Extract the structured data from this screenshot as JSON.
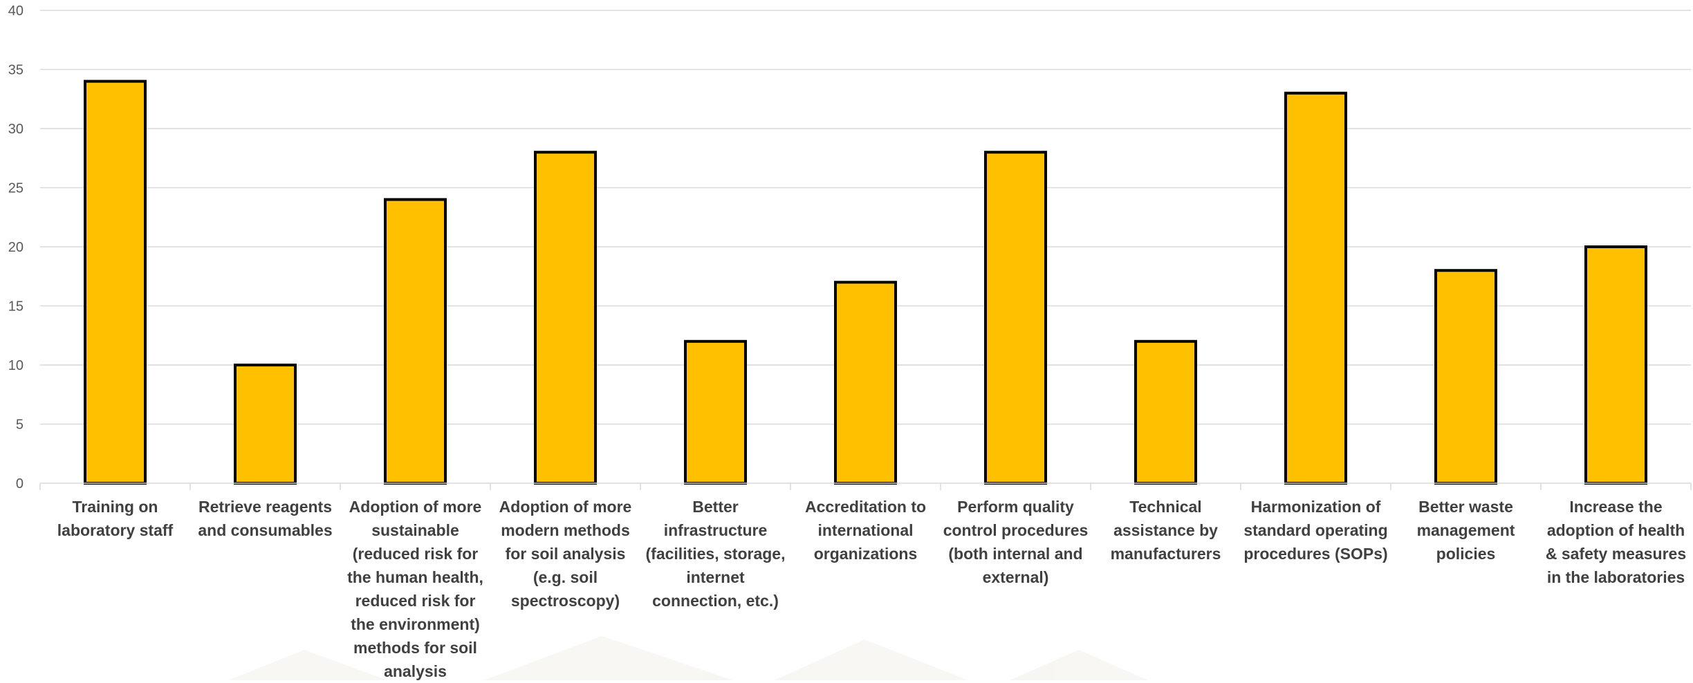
{
  "chart_data": {
    "type": "bar",
    "title": "",
    "xlabel": "",
    "ylabel": "",
    "ylim": [
      0,
      40
    ],
    "yticks": [
      0,
      5,
      10,
      15,
      20,
      25,
      30,
      35,
      40
    ],
    "grid": true,
    "legend": "none",
    "bar_color": "#FFC000",
    "bar_edge_color": "#000000",
    "categories": [
      "Training on laboratory staff",
      "Retrieve reagents and consumables",
      "Adoption of more sustainable (reduced risk for the human health, reduced risk for the environment) methods for soil analysis",
      "Adoption of more modern methods for soil analysis (e.g. soil spectroscopy)",
      "Better infrastructure (facilities, storage, internet connection, etc.)",
      "Accreditation to international organizations",
      "Perform quality control procedures (both internal and external)",
      "Technical assistance by manufacturers",
      "Harmonization of standard operating procedures (SOPs)",
      "Better waste management policies",
      "Increase the adoption of health & safety measures in the laboratories"
    ],
    "values": [
      34,
      10,
      24,
      28,
      12,
      17,
      28,
      12,
      33,
      18,
      20
    ]
  }
}
